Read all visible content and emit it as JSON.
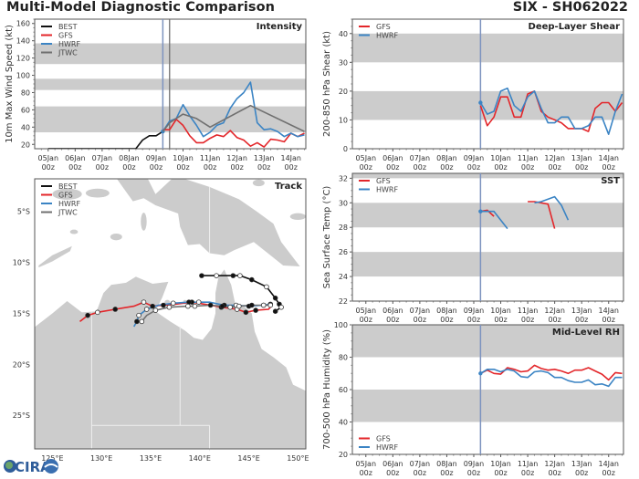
{
  "header": {
    "title": "Multi-Model Diagnostic Comparison",
    "storm_id": "SIX - SH062022"
  },
  "colors": {
    "BEST": "#111111",
    "GFS": "#e3262a",
    "HWRF": "#3b84c4",
    "JTWC": "#707070",
    "band": "#cccccc",
    "land": "#cccccc",
    "init_line": "#7d93bf",
    "jtwc_line": "#707070"
  },
  "logo": {
    "text": "CIRA"
  },
  "time_axis": {
    "ticks": [
      "05Jan\n00z",
      "06Jan\n00z",
      "07Jan\n00z",
      "08Jan\n00z",
      "09Jan\n00z",
      "10Jan\n00z",
      "11Jan\n00z",
      "12Jan\n00z",
      "13Jan\n00z",
      "14Jan\n00z"
    ],
    "tick_days": [
      5,
      6,
      7,
      8,
      9,
      10,
      11,
      12,
      13,
      14
    ],
    "range_days": [
      4.5,
      14.55
    ]
  },
  "chart_data": [
    {
      "id": "intensity",
      "type": "line",
      "title": "Intensity",
      "ylabel": "10m Max Wind Speed (kt)",
      "ylim": [
        15,
        165
      ],
      "yticks": [
        20,
        40,
        60,
        80,
        100,
        120,
        140,
        160
      ],
      "bands": [
        [
          34,
          64
        ],
        [
          83,
          96
        ],
        [
          113,
          137
        ]
      ],
      "init_time": 9.25,
      "jtwc_time": 9.5,
      "legend": [
        "BEST",
        "GFS",
        "HWRF",
        "JTWC"
      ],
      "legend_placement": "top-left",
      "series": [
        {
          "name": "BEST",
          "x": [
            5,
            5.25,
            5.5,
            5.75,
            6,
            6.25,
            6.5,
            6.75,
            7,
            7.25,
            7.5,
            7.75,
            8,
            8.25,
            8.5,
            8.75,
            9,
            9.25
          ],
          "y": [
            15,
            15,
            15,
            15,
            15,
            15,
            15,
            15,
            15,
            15,
            15,
            15,
            15,
            15,
            25,
            30,
            30,
            35
          ]
        },
        {
          "name": "GFS",
          "x": [
            9.25,
            9.5,
            9.75,
            10,
            10.25,
            10.5,
            10.75,
            11,
            11.25,
            11.5,
            11.75,
            12,
            12.25,
            12.5,
            12.75,
            13,
            13.25,
            13.5,
            13.75,
            14,
            14.25,
            14.5
          ],
          "y": [
            37,
            37,
            49,
            42,
            30,
            22,
            22,
            27,
            31,
            29,
            36,
            28,
            25,
            18,
            22,
            17,
            26,
            25,
            23,
            33,
            29,
            33
          ]
        },
        {
          "name": "HWRF",
          "x": [
            9.25,
            9.5,
            9.75,
            10,
            10.25,
            10.5,
            10.75,
            11,
            11.25,
            11.5,
            11.75,
            12,
            12.25,
            12.5,
            12.75,
            13,
            13.25,
            13.5,
            13.75,
            14,
            14.25,
            14.5
          ],
          "y": [
            35,
            47,
            50,
            66,
            53,
            42,
            29,
            34,
            42,
            45,
            62,
            73,
            80,
            92,
            45,
            37,
            38,
            35,
            29,
            33,
            29,
            31
          ]
        },
        {
          "name": "JTWC",
          "x": [
            9.25,
            9.5,
            10,
            10.5,
            11,
            12.5,
            14.5
          ],
          "y": [
            35,
            45,
            55,
            50,
            40,
            65,
            35
          ]
        }
      ]
    },
    {
      "id": "shear",
      "type": "line",
      "title": "Deep-Layer Shear",
      "ylabel": "200-850 hPa Shear (kt)",
      "ylim": [
        0,
        45
      ],
      "yticks": [
        0,
        10,
        20,
        30,
        40
      ],
      "bands": [
        [
          10,
          20
        ],
        [
          30,
          40
        ]
      ],
      "init_time": 9.25,
      "legend": [
        "GFS",
        "HWRF"
      ],
      "legend_placement": "top-left",
      "series": [
        {
          "name": "GFS",
          "x": [
            9.25,
            9.5,
            9.75,
            10,
            10.25,
            10.5,
            10.75,
            11,
            11.25,
            11.5,
            11.75,
            12,
            12.25,
            12.5,
            12.75,
            13,
            13.25,
            13.5,
            13.75,
            14,
            14.25,
            14.5
          ],
          "y": [
            15,
            8,
            11,
            18,
            18,
            11,
            11,
            19,
            20,
            13,
            11,
            10,
            9,
            7,
            7,
            7,
            6,
            14,
            16,
            16,
            13,
            16
          ]
        },
        {
          "name": "HWRF",
          "x": [
            9.25,
            9.5,
            9.75,
            10,
            10.25,
            10.5,
            10.75,
            11,
            11.25,
            11.5,
            11.75,
            12,
            12.25,
            12.5,
            12.75,
            13,
            13.25,
            13.5,
            13.75,
            14,
            14.25,
            14.5
          ],
          "y": [
            16,
            12,
            13,
            20,
            21,
            15,
            13,
            18,
            20,
            14,
            9,
            9,
            11,
            11,
            7,
            7,
            8,
            11,
            11,
            5,
            13,
            19
          ]
        }
      ]
    },
    {
      "id": "sst",
      "type": "line",
      "title": "SST",
      "ylabel": "Sea Surface Temp (°C)",
      "ylim": [
        22,
        32.4
      ],
      "yticks": [
        22,
        24,
        26,
        28,
        30,
        32
      ],
      "bands": [
        [
          24,
          26
        ],
        [
          28,
          30
        ],
        [
          32,
          33
        ]
      ],
      "init_time": 9.25,
      "legend": [
        "GFS",
        "HWRF"
      ],
      "legend_placement": "top-left",
      "series": [
        {
          "name": "GFS",
          "segments": [
            {
              "x": [
                9.25,
                9.5,
                9.75
              ],
              "y": [
                29.3,
                29.4,
                28.9
              ]
            },
            {
              "x": [
                11,
                11.25,
                11.75,
                12
              ],
              "y": [
                30.1,
                30.1,
                29.9,
                27.9
              ]
            }
          ]
        },
        {
          "name": "HWRF",
          "segments": [
            {
              "x": [
                9.25,
                9.5,
                9.75,
                10.25
              ],
              "y": [
                29.3,
                29.3,
                29.3,
                27.9
              ]
            },
            {
              "x": [
                11.25,
                11.5,
                12,
                12.25,
                12.5
              ],
              "y": [
                30.0,
                30.1,
                30.5,
                29.8,
                28.6
              ]
            }
          ]
        }
      ]
    },
    {
      "id": "rh",
      "type": "line",
      "title": "Mid-Level RH",
      "ylabel": "700-500 hPa Humidity (%)",
      "ylim": [
        20,
        100
      ],
      "yticks": [
        20,
        40,
        60,
        80,
        100
      ],
      "bands": [
        [
          40,
          60
        ],
        [
          80,
          100
        ]
      ],
      "init_time": 9.25,
      "legend": [
        "GFS",
        "HWRF"
      ],
      "legend_placement": "bottom-left",
      "series": [
        {
          "name": "GFS",
          "x": [
            9.25,
            9.5,
            9.75,
            10,
            10.25,
            10.5,
            10.75,
            11,
            11.25,
            11.5,
            11.75,
            12,
            12.25,
            12.5,
            12.75,
            13,
            13.25,
            13.5,
            13.75,
            14,
            14.25,
            14.5
          ],
          "y": [
            70,
            72,
            70,
            69.5,
            73.5,
            72.5,
            71,
            71.5,
            75,
            73,
            72,
            72.5,
            71.5,
            70,
            72,
            72,
            73.5,
            71.5,
            69.5,
            66,
            70.5,
            70
          ]
        },
        {
          "name": "HWRF",
          "x": [
            9.25,
            9.5,
            9.75,
            10,
            10.25,
            10.5,
            10.75,
            11,
            11.25,
            11.5,
            11.75,
            12,
            12.25,
            12.5,
            12.75,
            13,
            13.25,
            13.5,
            13.75,
            14,
            14.25,
            14.5
          ],
          "y": [
            70,
            72.5,
            72.5,
            71,
            72.5,
            71.5,
            68,
            67.5,
            71,
            71.5,
            70.5,
            67.5,
            67.5,
            65.5,
            64.5,
            64.5,
            66,
            63,
            63.5,
            62,
            67.5,
            67.5
          ]
        }
      ]
    },
    {
      "id": "track",
      "type": "scatter",
      "title": "Track",
      "lon_range": [
        123.2,
        150.8
      ],
      "lat_range": [
        -28.3,
        -1.8
      ],
      "lon_ticks": [
        "125°E",
        "130°E",
        "135°E",
        "140°E",
        "145°E",
        "150°E"
      ],
      "lon_tick_values": [
        125,
        130,
        135,
        140,
        145,
        150
      ],
      "lat_ticks": [
        "5°S",
        "10°S",
        "15°S",
        "20°S",
        "25°S"
      ],
      "lat_tick_values": [
        -5,
        -10,
        -15,
        -20,
        -25
      ],
      "legend": [
        "BEST",
        "GFS",
        "HWRF",
        "JTWC"
      ],
      "legend_placement": "top-left",
      "series": [
        {
          "name": "BEST",
          "lon": [
            140.2,
            141.7,
            143.4,
            144.1,
            145.3,
            146.8,
            147.7,
            148.1,
            148.3,
            147.7
          ],
          "lat": [
            -11.3,
            -11.3,
            -11.3,
            -11.3,
            -11.7,
            -12.4,
            -13.5,
            -14.1,
            -14.4,
            -14.8
          ],
          "markers": [
            "filled",
            "open",
            "filled",
            "open",
            "filled",
            "open",
            "filled",
            "filled",
            "open",
            "filled"
          ]
        },
        {
          "name": "GFS",
          "lon": [
            127.8,
            128.6,
            129.6,
            131.4,
            133.3,
            134.3,
            135.2,
            136.3,
            137.5,
            139.2,
            140.5,
            142.2,
            143.8,
            144.7,
            145.7,
            147.0,
            147.3
          ],
          "lat": [
            -15.8,
            -15.2,
            -14.9,
            -14.6,
            -14.3,
            -13.9,
            -14.3,
            -14.2,
            -14.1,
            -13.9,
            -14.1,
            -14.4,
            -14.6,
            -14.9,
            -14.7,
            -14.6,
            -14.3
          ],
          "markers": [
            "none",
            "filled",
            "open",
            "filled",
            "none",
            "open",
            "filled",
            "filled",
            "none",
            "filled",
            "none",
            "filled",
            "open",
            "filled",
            "filled",
            "none",
            "none"
          ]
        },
        {
          "name": "HWRF",
          "lon": [
            133.3,
            133.6,
            133.8,
            134.6,
            135.8,
            137.3,
            138.9,
            139.9,
            141.0,
            142.5,
            143.7,
            145.0,
            146.5,
            147.2
          ],
          "lat": [
            -16.3,
            -15.8,
            -15.2,
            -14.6,
            -14.2,
            -14.0,
            -13.9,
            -13.9,
            -13.9,
            -14.2,
            -14.2,
            -14.3,
            -14.2,
            -14.1
          ],
          "markers": [
            "none",
            "filled",
            "open",
            "open",
            "none",
            "open",
            "filled",
            "open",
            "none",
            "filled",
            "open",
            "filled",
            "open",
            "filled"
          ]
        },
        {
          "name": "JTWC",
          "lon": [
            134.1,
            134.6,
            135.5,
            136.9,
            138.8,
            139.5,
            141.1,
            142.3,
            143.1,
            144.0,
            145.3,
            146.5,
            147.2
          ],
          "lat": [
            -15.8,
            -15.2,
            -14.7,
            -14.4,
            -14.3,
            -14.3,
            -14.2,
            -14.3,
            -14.4,
            -14.3,
            -14.2,
            -14.2,
            -14.2
          ],
          "markers": [
            "open",
            "none",
            "open",
            "open",
            "open",
            "open",
            "filled",
            "filled",
            "open",
            "open",
            "filled",
            "open",
            "open"
          ]
        }
      ]
    }
  ]
}
